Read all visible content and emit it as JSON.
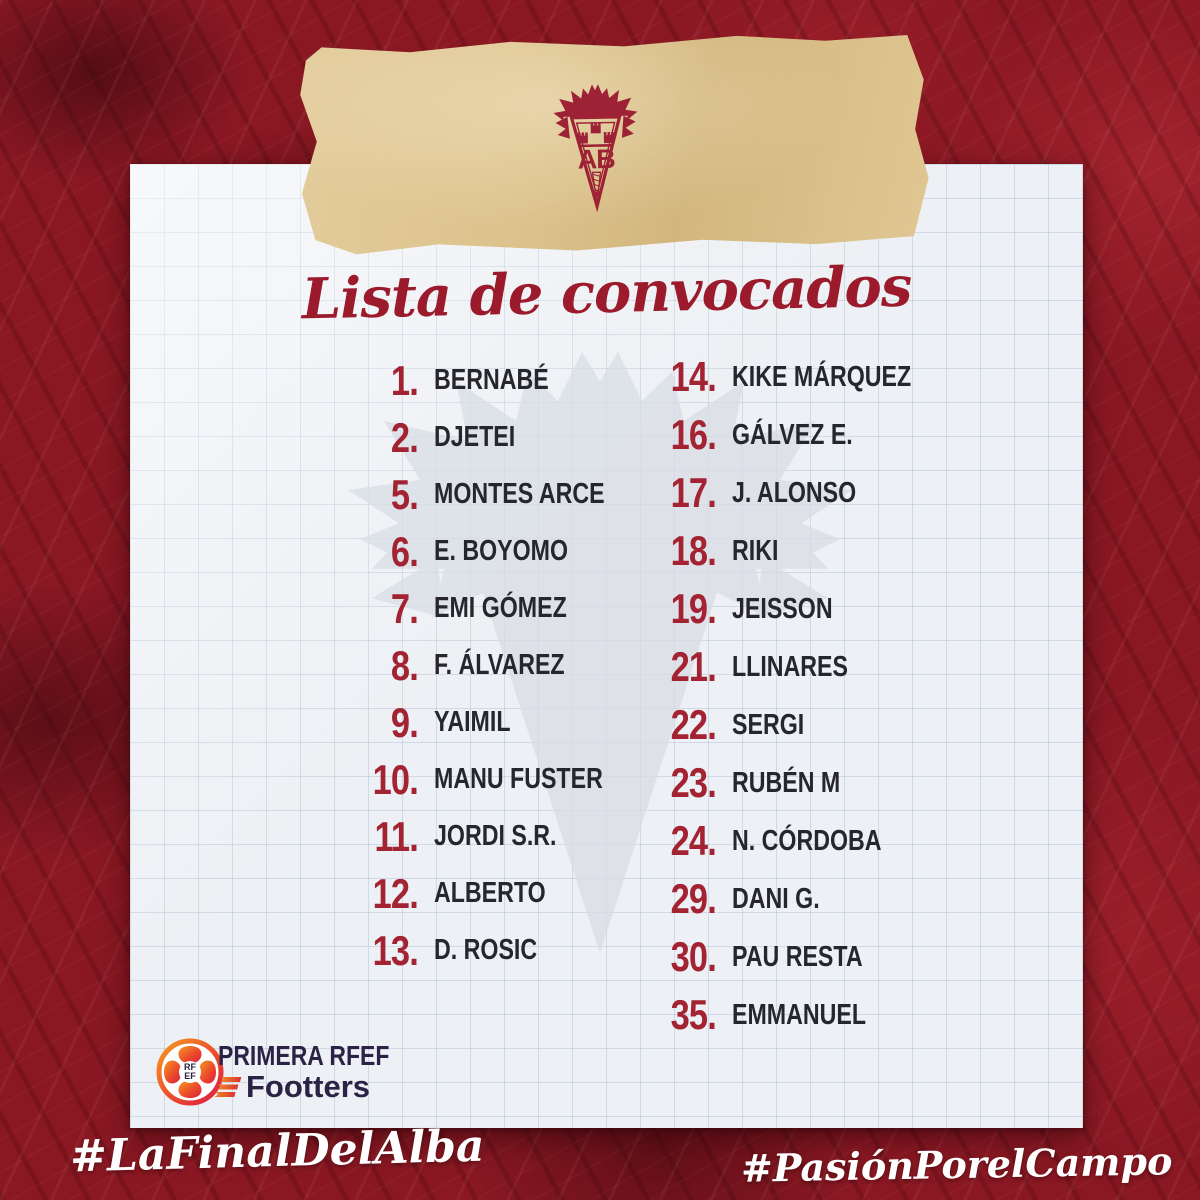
{
  "title": "Lista de convocados",
  "team_crest": "albacete-balompie-crest",
  "roster": {
    "columns": [
      {
        "players": [
          {
            "number": "1.",
            "name": "BERNABÉ"
          },
          {
            "number": "2.",
            "name": "DJETEI"
          },
          {
            "number": "5.",
            "name": "MONTES ARCE"
          },
          {
            "number": "6.",
            "name": "E. BOYOMO"
          },
          {
            "number": "7.",
            "name": "EMI GÓMEZ"
          },
          {
            "number": "8.",
            "name": "F. ÁLVAREZ"
          },
          {
            "number": "9.",
            "name": "YAIMIL"
          },
          {
            "number": "10.",
            "name": "MANU FUSTER"
          },
          {
            "number": "11.",
            "name": "JORDI S.R."
          },
          {
            "number": "12.",
            "name": "ALBERTO"
          },
          {
            "number": "13.",
            "name": "D. ROSIC"
          }
        ]
      },
      {
        "players": [
          {
            "number": "14.",
            "name": "KIKE MÁRQUEZ"
          },
          {
            "number": "16.",
            "name": "GÁLVEZ E."
          },
          {
            "number": "17.",
            "name": "J. ALONSO"
          },
          {
            "number": "18.",
            "name": "RIKI"
          },
          {
            "number": "19.",
            "name": "JEISSON"
          },
          {
            "number": "21.",
            "name": "LLINARES"
          },
          {
            "number": "22.",
            "name": "SERGI"
          },
          {
            "number": "23.",
            "name": "RUBÉN M"
          },
          {
            "number": "24.",
            "name": "N. CÓRDOBA"
          },
          {
            "number": "29.",
            "name": "DANI G."
          },
          {
            "number": "30.",
            "name": "PAU RESTA"
          },
          {
            "number": "35.",
            "name": "EMMANUEL"
          }
        ]
      }
    ]
  },
  "footer": {
    "league_label": "PRIMERA RFEF",
    "rfef_monogram_line1": "RF",
    "rfef_monogram_line2": "EF",
    "streaming_label": "Footters"
  },
  "hashtags": {
    "left": "#LaFinalDelAlba",
    "right": "#PasiónPorelCampo"
  },
  "colors": {
    "background_red": "#8a1823",
    "number_red": "#a32333",
    "title_red": "#9b1b2c",
    "name_dark": "#26262c",
    "tape_tan": "#dcc28c",
    "crest_red": "#9e2235",
    "paper": "#edf0f4",
    "logo_navy": "#2b2246",
    "hashtag_white": "#ffffff"
  }
}
